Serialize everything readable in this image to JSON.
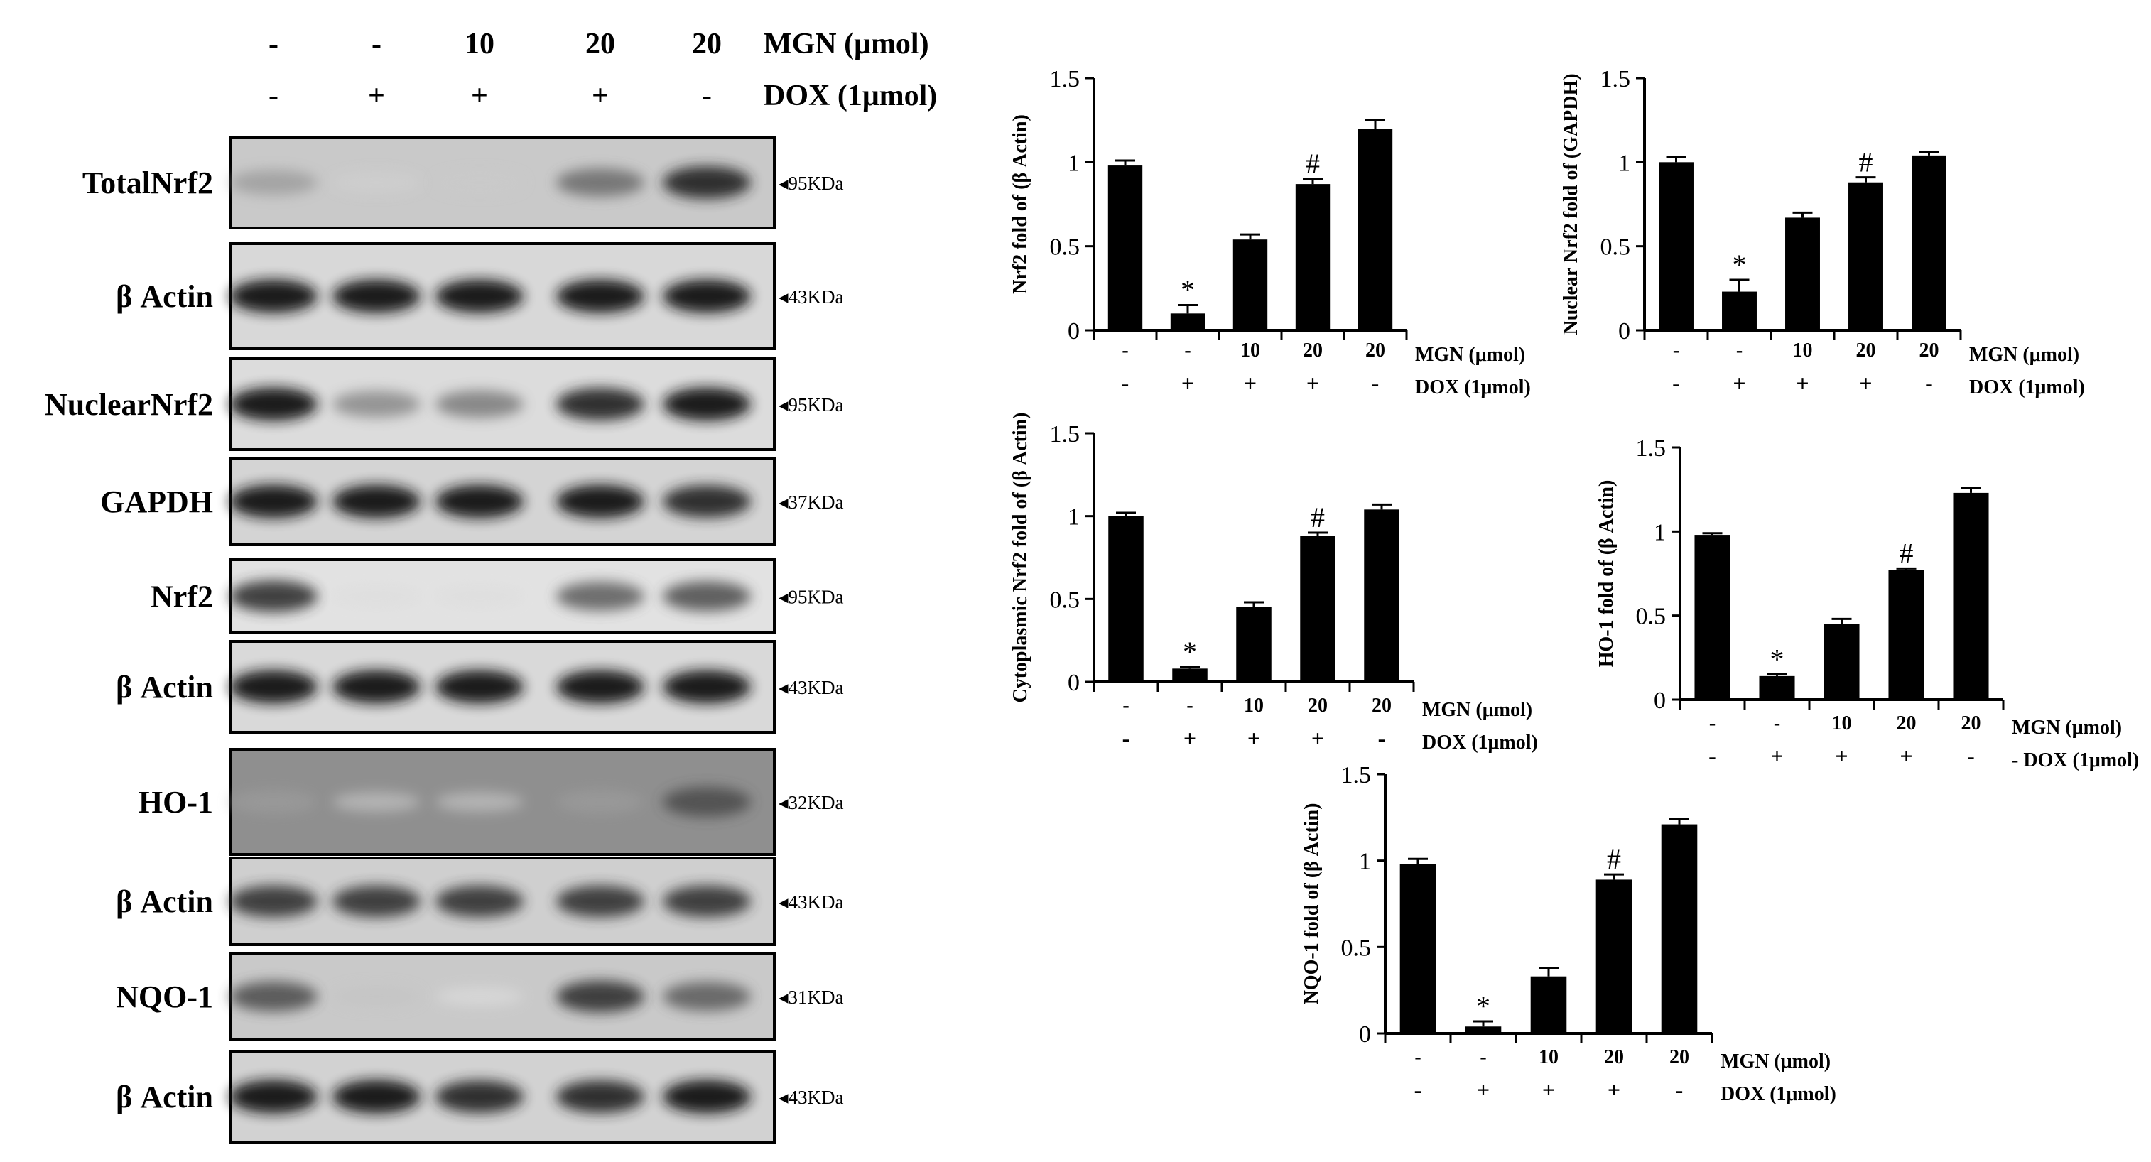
{
  "blot_panel": {
    "header": {
      "mgn_values": [
        "-",
        "-",
        "10",
        "20",
        "20"
      ],
      "mgn_label": "MGN (μmol)",
      "dox_values": [
        "-",
        "+",
        "+",
        "+",
        "-"
      ],
      "dox_label": "DOX (1μmol)"
    },
    "rows": [
      {
        "label": "TotalNrf2",
        "size": "◂95KDa",
        "intensity": [
          0.45,
          0.18,
          0.22,
          0.65,
          0.9
        ]
      },
      {
        "label": "β Actin",
        "size": "◂43KDa",
        "intensity": [
          0.95,
          0.95,
          0.95,
          0.95,
          0.95
        ]
      },
      {
        "label": "NuclearNrf2",
        "size": "◂95KDa",
        "intensity": [
          0.95,
          0.55,
          0.6,
          0.9,
          0.95
        ]
      },
      {
        "label": "GAPDH",
        "size": "◂37KDa",
        "intensity": [
          0.95,
          0.95,
          0.95,
          0.95,
          0.9
        ]
      },
      {
        "label": "Nrf2",
        "size": "◂95KDa",
        "intensity": [
          0.85,
          0.15,
          0.15,
          0.7,
          0.75
        ]
      },
      {
        "label": "β Actin",
        "size": "◂43KDa",
        "intensity": [
          0.95,
          0.95,
          0.95,
          0.95,
          0.95
        ]
      },
      {
        "label": "HO-1",
        "size": "◂32KDa",
        "intensity": [
          0.4,
          0.15,
          0.15,
          0.4,
          0.75
        ]
      },
      {
        "label": "β Actin",
        "size": "◂43KDa",
        "intensity": [
          0.85,
          0.85,
          0.85,
          0.85,
          0.85
        ]
      },
      {
        "label": "NQO-1",
        "size": "◂31KDa",
        "intensity": [
          0.75,
          0.25,
          0.1,
          0.85,
          0.7
        ]
      },
      {
        "label": "β Actin",
        "size": "◂43KDa",
        "intensity": [
          0.95,
          0.95,
          0.9,
          0.9,
          0.95
        ]
      }
    ]
  },
  "chart_data": [
    {
      "type": "bar",
      "ylabel": "Nrf2 fold of (β Actin)",
      "ylim": [
        0,
        1.5
      ],
      "yticks": [
        "0",
        "0.5",
        "1",
        "1.5"
      ],
      "categories_mgn": [
        "-",
        "-",
        "10",
        "20",
        "20"
      ],
      "categories_dox": [
        "-",
        "+",
        "+",
        "+",
        "-"
      ],
      "row_label_mgn": "MGN (μmol)",
      "row_label_dox": "DOX (1μmol)",
      "values": [
        0.98,
        0.1,
        0.54,
        0.87,
        1.2
      ],
      "errors": [
        0.03,
        0.05,
        0.03,
        0.03,
        0.05
      ],
      "annotations": [
        "",
        "*",
        "",
        "#",
        ""
      ]
    },
    {
      "type": "bar",
      "ylabel": "Nuclear Nrf2 fold of (GAPDH)",
      "ylim": [
        0,
        1.5
      ],
      "yticks": [
        "0",
        "0.5",
        "1",
        "1.5"
      ],
      "categories_mgn": [
        "-",
        "-",
        "10",
        "20",
        "20"
      ],
      "categories_dox": [
        "-",
        "+",
        "+",
        "+",
        "-"
      ],
      "row_label_mgn": "MGN (μmol)",
      "row_label_dox": "DOX (1μmol)",
      "values": [
        1.0,
        0.23,
        0.67,
        0.88,
        1.04
      ],
      "errors": [
        0.03,
        0.07,
        0.03,
        0.03,
        0.02
      ],
      "annotations": [
        "",
        "*",
        "",
        "#",
        ""
      ]
    },
    {
      "type": "bar",
      "ylabel": "Cytoplasmic Nrf2 fold of (β Actin)",
      "ylim": [
        0,
        1.5
      ],
      "yticks": [
        "0",
        "0.5",
        "1",
        "1.5"
      ],
      "categories_mgn": [
        "-",
        "-",
        "10",
        "20",
        "20"
      ],
      "categories_dox": [
        "-",
        "+",
        "+",
        "+",
        "-"
      ],
      "row_label_mgn": "MGN (μmol)",
      "row_label_dox": "DOX (1μmol)",
      "values": [
        1.0,
        0.08,
        0.45,
        0.88,
        1.04
      ],
      "errors": [
        0.02,
        0.01,
        0.03,
        0.02,
        0.03
      ],
      "annotations": [
        "",
        "*",
        "",
        "#",
        ""
      ]
    },
    {
      "type": "bar",
      "ylabel": "HO-1 fold of (β Actin)",
      "ylim": [
        0,
        1.5
      ],
      "yticks": [
        "0",
        "0.5",
        "1",
        "1.5"
      ],
      "categories_mgn": [
        "-",
        "-",
        "10",
        "20",
        "20"
      ],
      "categories_dox": [
        "-",
        "+",
        "+",
        "+",
        "-"
      ],
      "row_label_mgn": "MGN (μmol)",
      "row_label_dox": "- DOX (1μmol)",
      "values": [
        0.98,
        0.14,
        0.45,
        0.77,
        1.23
      ],
      "errors": [
        0.01,
        0.01,
        0.03,
        0.01,
        0.03
      ],
      "annotations": [
        "",
        "*",
        "",
        "#",
        ""
      ]
    },
    {
      "type": "bar",
      "ylabel": "NQO-1 fold of (β Actin)",
      "ylim": [
        0,
        1.5
      ],
      "yticks": [
        "0",
        "0.5",
        "1",
        "1.5"
      ],
      "categories_mgn": [
        "-",
        "-",
        "10",
        "20",
        "20"
      ],
      "categories_dox": [
        "-",
        "+",
        "+",
        "+",
        "-"
      ],
      "row_label_mgn": "MGN (μmol)",
      "row_label_dox": "DOX (1μmol)",
      "values": [
        0.98,
        0.04,
        0.33,
        0.89,
        1.21
      ],
      "errors": [
        0.03,
        0.03,
        0.05,
        0.03,
        0.03
      ],
      "annotations": [
        "",
        "*",
        "",
        "#",
        ""
      ]
    }
  ]
}
